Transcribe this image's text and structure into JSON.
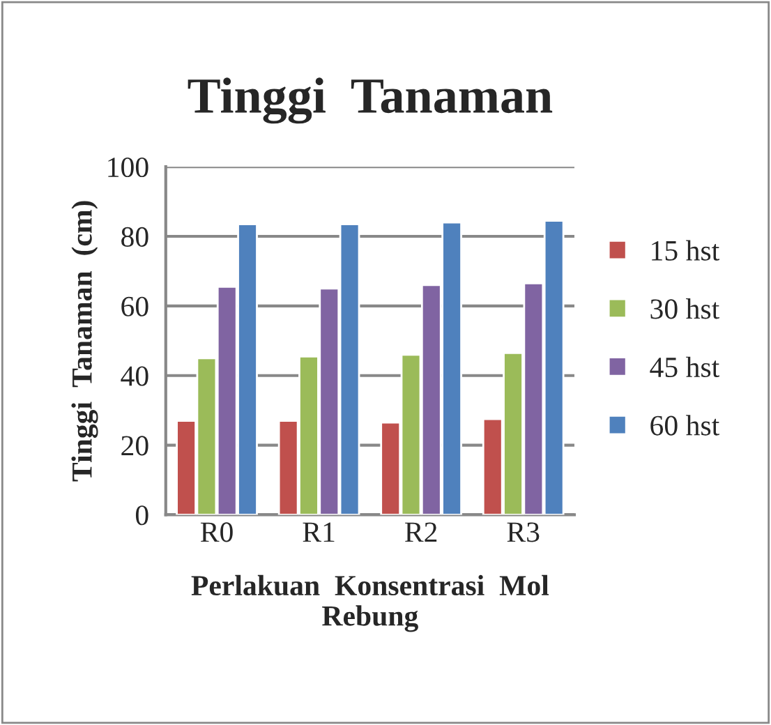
{
  "chart_data": {
    "type": "bar",
    "title": "Tinggi  Tanaman",
    "xlabel": "Perlakuan  Konsentrasi  Mol\nRebung",
    "ylabel": "Tinggi  Tanaman  (cm)",
    "categories": [
      "R0",
      "R1",
      "R2",
      "R3"
    ],
    "series": [
      {
        "name": "15 hst",
        "color": "#c0504d",
        "values": [
          27,
          27,
          26.5,
          27.5
        ]
      },
      {
        "name": "30 hst",
        "color": "#9bbb59",
        "values": [
          45,
          45.5,
          46,
          46.5
        ]
      },
      {
        "name": "45 hst",
        "color": "#8064a2",
        "values": [
          65.5,
          65,
          66,
          66.5
        ]
      },
      {
        "name": "60 hst",
        "color": "#4f81bd",
        "values": [
          83.5,
          83.5,
          84,
          84.5
        ]
      }
    ],
    "ylim": [
      0,
      100
    ],
    "yticks": [
      0,
      20,
      40,
      60,
      80,
      100
    ],
    "grid": "y",
    "legend": "right"
  }
}
